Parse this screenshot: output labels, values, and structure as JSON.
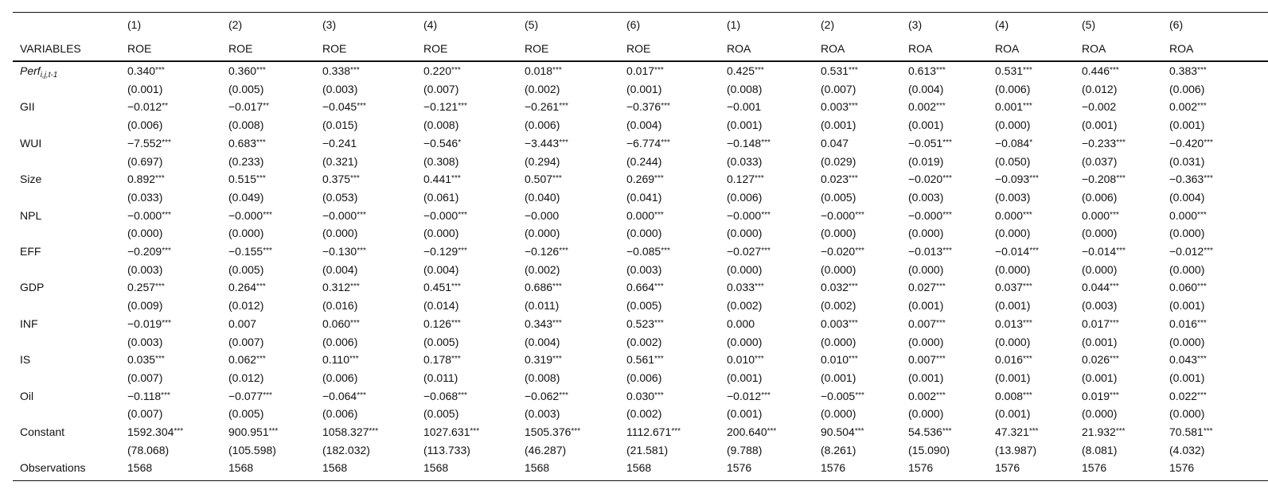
{
  "table": {
    "col_numbers": [
      "(1)",
      "(2)",
      "(3)",
      "(4)",
      "(5)",
      "(6)",
      "(1)",
      "(2)",
      "(3)",
      "(4)",
      "(5)",
      "(6)"
    ],
    "header_label": "VARIABLES",
    "col_names": [
      "ROE",
      "ROE",
      "ROE",
      "ROE",
      "ROE",
      "ROE",
      "ROA",
      "ROA",
      "ROA",
      "ROA",
      "ROA",
      "ROA"
    ],
    "rows": [
      {
        "label": "Perf",
        "label_sub": "i,j,t-1",
        "coef": [
          "0.340",
          "0.360",
          "0.338",
          "0.220",
          "0.018",
          "0.017",
          "0.425",
          "0.531",
          "0.613",
          "0.531",
          "0.446",
          "0.383"
        ],
        "stars": [
          "***",
          "***",
          "***",
          "***",
          "***",
          "***",
          "***",
          "***",
          "***",
          "***",
          "***",
          "***"
        ],
        "se": [
          "(0.001)",
          "(0.005)",
          "(0.003)",
          "(0.007)",
          "(0.002)",
          "(0.001)",
          "(0.008)",
          "(0.007)",
          "(0.004)",
          "(0.006)",
          "(0.012)",
          "(0.006)"
        ]
      },
      {
        "label": "GII",
        "coef": [
          "−0.012",
          "−0.017",
          "−0.045",
          "−0.121",
          "−0.261",
          "−0.376",
          "−0.001",
          "0.003",
          "0.002",
          "0.001",
          "−0.002",
          "0.002"
        ],
        "stars": [
          "**",
          "**",
          "***",
          "***",
          "***",
          "***",
          null,
          "***",
          "***",
          "***",
          null,
          "***"
        ],
        "se": [
          "(0.006)",
          "(0.008)",
          "(0.015)",
          "(0.008)",
          "(0.006)",
          "(0.004)",
          "(0.001)",
          "(0.001)",
          "(0.001)",
          "(0.000)",
          "(0.001)",
          "(0.001)"
        ]
      },
      {
        "label": "WUI",
        "coef": [
          "−7.552",
          "0.683",
          "−0.241",
          "−0.546",
          "−3.443",
          "−6.774",
          "−0.148",
          "0.047",
          "−0.051",
          "−0.084",
          "−0.233",
          "−0.420"
        ],
        "stars": [
          "***",
          "***",
          null,
          "*",
          "***",
          "***",
          "***",
          null,
          "***",
          "*",
          "***",
          "***"
        ],
        "se": [
          "(0.697)",
          "(0.233)",
          "(0.321)",
          "(0.308)",
          "(0.294)",
          "(0.244)",
          "(0.033)",
          "(0.029)",
          "(0.019)",
          "(0.050)",
          "(0.037)",
          "(0.031)"
        ]
      },
      {
        "label": "Size",
        "coef": [
          "0.892",
          "0.515",
          "0.375",
          "0.441",
          "0.507",
          "0.269",
          "0.127",
          "0.023",
          "−0.020",
          "−0.093",
          "−0.208",
          "−0.363"
        ],
        "stars": [
          "***",
          "***",
          "***",
          "***",
          "***",
          "***",
          "***",
          "***",
          "***",
          "***",
          "***",
          "***"
        ],
        "se": [
          "(0.033)",
          "(0.049)",
          "(0.053)",
          "(0.061)",
          "(0.040)",
          "(0.041)",
          "(0.006)",
          "(0.005)",
          "(0.003)",
          "(0.003)",
          "(0.006)",
          "(0.004)"
        ]
      },
      {
        "label": "NPL",
        "coef": [
          "−0.000",
          "−0.000",
          "−0.000",
          "−0.000",
          "−0.000",
          "0.000",
          "−0.000",
          "−0.000",
          "−0.000",
          "0.000",
          "0.000",
          "0.000"
        ],
        "stars": [
          "***",
          "***",
          "***",
          "***",
          null,
          "***",
          "***",
          "***",
          "***",
          "***",
          "***",
          "***"
        ],
        "se": [
          "(0.000)",
          "(0.000)",
          "(0.000)",
          "(0.000)",
          "(0.000)",
          "(0.000)",
          "(0.000)",
          "(0.000)",
          "(0.000)",
          "(0.000)",
          "(0.000)",
          "(0.000)"
        ]
      },
      {
        "label": "EFF",
        "coef": [
          "−0.209",
          "−0.155",
          "−0.130",
          "−0.129",
          "−0.126",
          "−0.085",
          "−0.027",
          "−0.020",
          "−0.013",
          "−0.014",
          "−0.014",
          "−0.012"
        ],
        "stars": [
          "***",
          "***",
          "***",
          "***",
          "***",
          "***",
          "***",
          "***",
          "***",
          "***",
          "***",
          "***"
        ],
        "se": [
          "(0.003)",
          "(0.005)",
          "(0.004)",
          "(0.004)",
          "(0.002)",
          "(0.003)",
          "(0.000)",
          "(0.000)",
          "(0.000)",
          "(0.000)",
          "(0.000)",
          "(0.000)"
        ]
      },
      {
        "label": "GDP",
        "coef": [
          "0.257",
          "0.264",
          "0.312",
          "0.451",
          "0.686",
          "0.664",
          "0.033",
          "0.032",
          "0.027",
          "0.037",
          "0.044",
          "0.060"
        ],
        "stars": [
          "***",
          "***",
          "***",
          "***",
          "***",
          "***",
          "***",
          "***",
          "***",
          "***",
          "***",
          "***"
        ],
        "se": [
          "(0.009)",
          "(0.012)",
          "(0.016)",
          "(0.014)",
          "(0.011)",
          "(0.005)",
          "(0.002)",
          "(0.002)",
          "(0.001)",
          "(0.001)",
          "(0.003)",
          "(0.001)"
        ]
      },
      {
        "label": "INF",
        "coef": [
          "−0.019",
          "0.007",
          "0.060",
          "0.126",
          "0.343",
          "0.523",
          "0.000",
          "0.003",
          "0.007",
          "0.013",
          "0.017",
          "0.016"
        ],
        "stars": [
          "***",
          null,
          "***",
          "***",
          "***",
          "***",
          null,
          "***",
          "***",
          "***",
          "***",
          "***"
        ],
        "se": [
          "(0.003)",
          "(0.007)",
          "(0.006)",
          "(0.005)",
          "(0.004)",
          "(0.002)",
          "(0.000)",
          "(0.000)",
          "(0.000)",
          "(0.000)",
          "(0.001)",
          "(0.000)"
        ]
      },
      {
        "label": "IS",
        "coef": [
          "0.035",
          "0.062",
          "0.110",
          "0.178",
          "0.319",
          "0.561",
          "0.010",
          "0.010",
          "0.007",
          "0.016",
          "0.026",
          "0.043"
        ],
        "stars": [
          "***",
          "***",
          "***",
          "***",
          "***",
          "***",
          "***",
          "***",
          "***",
          "***",
          "***",
          "***"
        ],
        "se": [
          "(0.007)",
          "(0.012)",
          "(0.006)",
          "(0.011)",
          "(0.008)",
          "(0.006)",
          "(0.001)",
          "(0.001)",
          "(0.001)",
          "(0.001)",
          "(0.001)",
          "(0.001)"
        ]
      },
      {
        "label": "Oil",
        "coef": [
          "−0.118",
          "−0.077",
          "−0.064",
          "−0.068",
          "−0.062",
          "0.030",
          "−0.012",
          "−0.005",
          "0.002",
          "0.008",
          "0.019",
          "0.022"
        ],
        "stars": [
          "***",
          "***",
          "***",
          "***",
          "***",
          "***",
          "***",
          "***",
          "***",
          "***",
          "***",
          "***"
        ],
        "se": [
          "(0.007)",
          "(0.005)",
          "(0.006)",
          "(0.005)",
          "(0.003)",
          "(0.002)",
          "(0.001)",
          "(0.000)",
          "(0.000)",
          "(0.001)",
          "(0.000)",
          "(0.000)"
        ]
      },
      {
        "label": "Constant",
        "coef": [
          "1592.304",
          "900.951",
          "1058.327",
          "1027.631",
          "1505.376",
          "1112.671",
          "200.640",
          "90.504",
          "54.536",
          "47.321",
          "21.932",
          "70.581"
        ],
        "stars": [
          "***",
          "***",
          "***",
          "***",
          "***",
          "***",
          "***",
          "***",
          "***",
          "***",
          "***",
          "***"
        ],
        "se": [
          "(78.068)",
          "(105.598)",
          "(182.032)",
          "(113.733)",
          "(46.287)",
          "(21.581)",
          "(9.788)",
          "(8.261)",
          "(15.090)",
          "(13.987)",
          "(8.081)",
          "(4.032)"
        ]
      }
    ],
    "obs_label": "Observations",
    "observations": [
      "1568",
      "1568",
      "1568",
      "1568",
      "1568",
      "1568",
      "1576",
      "1576",
      "1576",
      "1576",
      "1576",
      "1576"
    ]
  }
}
